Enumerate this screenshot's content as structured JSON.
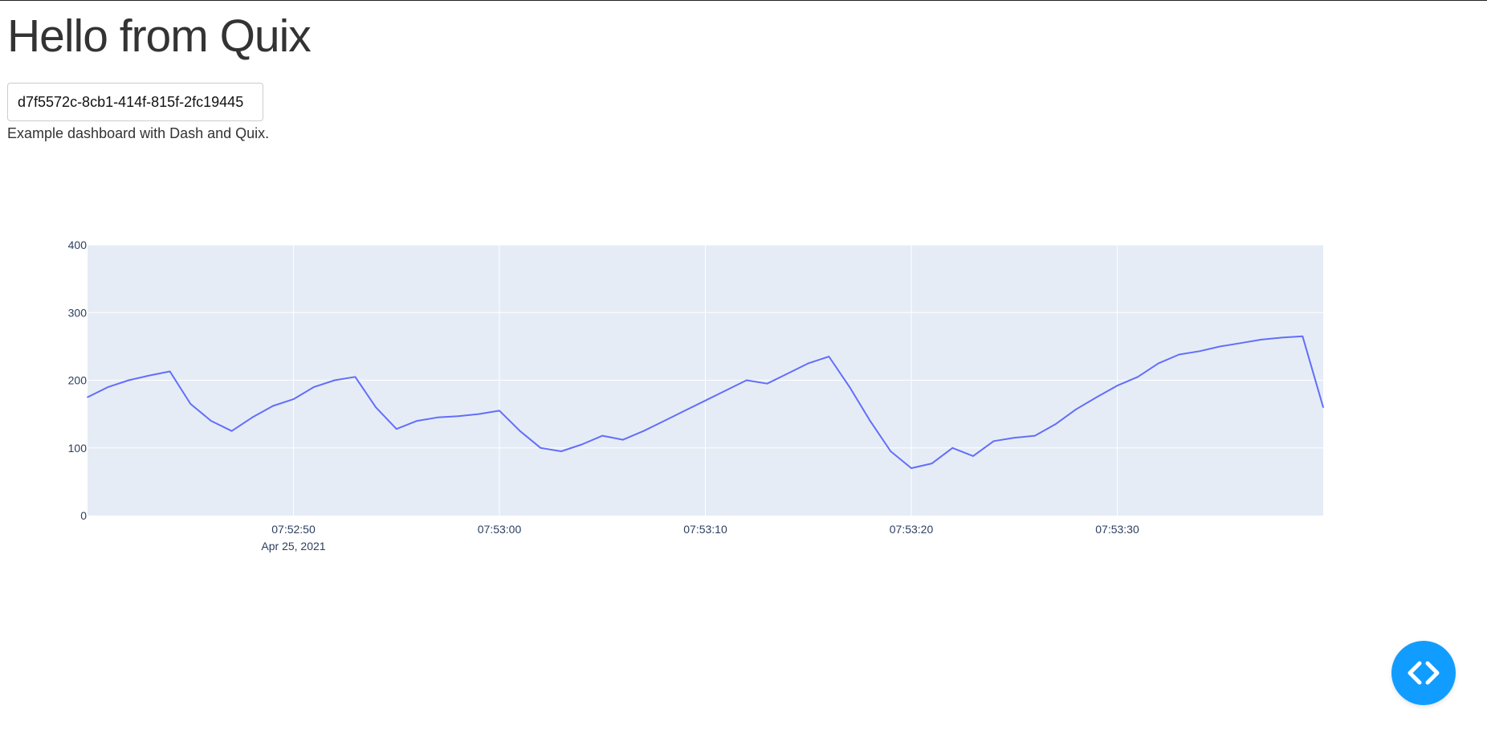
{
  "page": {
    "title": "Hello from Quix",
    "stream_input_value": "d7f5572c-8cb1-414f-815f-2fc19445",
    "description": "Example dashboard with Dash and Quix."
  },
  "dev_tools_button": {
    "icon": "code-brackets-icon",
    "color": "#119dff"
  },
  "chart_data": {
    "type": "line",
    "x_type": "time",
    "series": [
      {
        "color": "#636efa",
        "x": [
          "07:52:40",
          "07:52:41",
          "07:52:42",
          "07:52:43",
          "07:52:44",
          "07:52:45",
          "07:52:46",
          "07:52:47",
          "07:52:48",
          "07:52:49",
          "07:52:50",
          "07:52:51",
          "07:52:52",
          "07:52:53",
          "07:52:54",
          "07:52:55",
          "07:52:56",
          "07:52:57",
          "07:52:58",
          "07:52:59",
          "07:53:00",
          "07:53:01",
          "07:53:02",
          "07:53:03",
          "07:53:04",
          "07:53:05",
          "07:53:06",
          "07:53:07",
          "07:53:08",
          "07:53:09",
          "07:53:10",
          "07:53:11",
          "07:53:12",
          "07:53:13",
          "07:53:14",
          "07:53:15",
          "07:53:16",
          "07:53:17",
          "07:53:18",
          "07:53:19",
          "07:53:20",
          "07:53:21",
          "07:53:22",
          "07:53:23",
          "07:53:24",
          "07:53:25",
          "07:53:26",
          "07:53:27",
          "07:53:28",
          "07:53:29",
          "07:53:30",
          "07:53:31",
          "07:53:32",
          "07:53:33",
          "07:53:34",
          "07:53:35",
          "07:53:36",
          "07:53:37",
          "07:53:38",
          "07:53:39",
          "07:53:40"
        ],
        "y": [
          175,
          190,
          200,
          207,
          213,
          165,
          140,
          125,
          145,
          162,
          172,
          190,
          200,
          205,
          160,
          128,
          140,
          145,
          147,
          150,
          155,
          125,
          100,
          95,
          105,
          118,
          112,
          125,
          140,
          155,
          170,
          185,
          200,
          195,
          210,
          225,
          235,
          190,
          140,
          95,
          70,
          77,
          100,
          88,
          110,
          115,
          118,
          135,
          157,
          175,
          192,
          205,
          225,
          238,
          243,
          250,
          255,
          260,
          263,
          265,
          160
        ]
      }
    ],
    "xlim": [
      "07:52:40",
      "07:53:40"
    ],
    "ylim": [
      0,
      400
    ],
    "y_ticks": [
      0,
      100,
      200,
      300,
      400
    ],
    "x_ticks": [
      "07:52:50",
      "07:53:00",
      "07:53:10",
      "07:53:20",
      "07:53:30"
    ],
    "x_date_label": "Apr 25, 2021",
    "grid": true,
    "plot_background": "#e5ecf6",
    "line_color": "#636efa",
    "tick_color": "#2a3f5f"
  }
}
